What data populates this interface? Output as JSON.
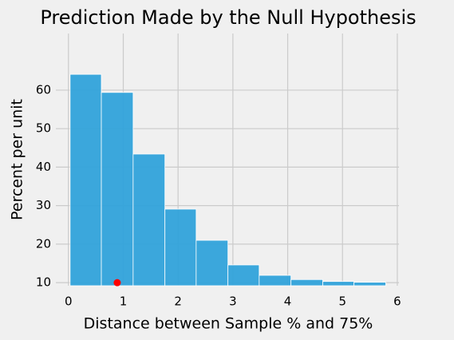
{
  "chart_data": {
    "type": "histogram",
    "title": "Prediction Made by the Null Hypothesis",
    "x_label": "Distance between Sample % and 75%",
    "y_label": "Percent per unit",
    "bins": [
      0.03,
      0.6,
      1.18,
      1.76,
      2.33,
      2.91,
      3.48,
      4.06,
      4.64,
      5.21,
      5.79
    ],
    "values": [
      64.1,
      59.4,
      43.4,
      29.1,
      21.0,
      14.6,
      11.9,
      10.8,
      10.3,
      10.1
    ],
    "color": "#30a2da",
    "point": {
      "x": 0.89,
      "y": 10,
      "color": "#ff0000"
    },
    "xlim": [
      -0.23,
      6.03
    ],
    "ylim": [
      9.2,
      74.7
    ],
    "xticks": [
      0,
      1,
      2,
      3,
      4,
      5,
      6
    ],
    "yticks": [
      10,
      20,
      30,
      40,
      50,
      60
    ],
    "grid": true
  }
}
